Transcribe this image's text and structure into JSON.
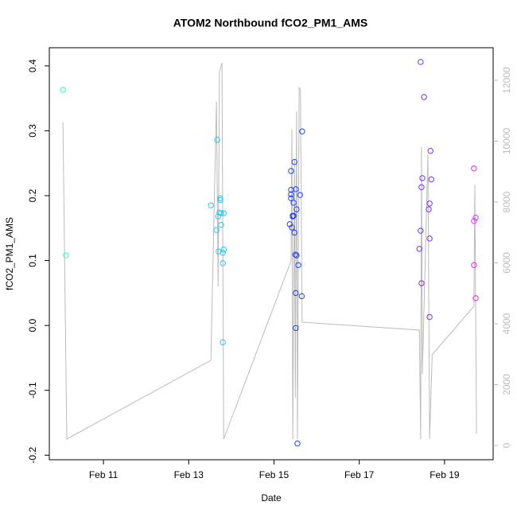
{
  "chart_data": {
    "type": "scatter",
    "title": "ATOM2 Northbound fCO2_PM1_AMS",
    "x_label": "Date",
    "y_label": "fCO2_PM1_AMS",
    "xlim": [
      9.73,
      20.14
    ],
    "xticks": [
      {
        "value": 11,
        "label": "Feb 11"
      },
      {
        "value": 13,
        "label": "Feb 13"
      },
      {
        "value": 15,
        "label": "Feb 15"
      },
      {
        "value": 17,
        "label": "Feb 17"
      },
      {
        "value": 19,
        "label": "Feb 19"
      }
    ],
    "ylim": [
      -0.207,
      0.428
    ],
    "yticks": [
      -0.2,
      -0.1,
      {
        "value": 0,
        "label": "0.0"
      },
      0.1,
      0.2,
      0.3,
      0.4
    ],
    "y2lim": [
      -471,
      13072
    ],
    "y2ticks": [
      0,
      2000,
      4000,
      6000,
      8000,
      10000,
      12000
    ],
    "y2_color": "#bbbbbb",
    "series": [
      {
        "type": "scatter",
        "color": "#33ffaa",
        "x": [
          10.05,
          10.12
        ],
        "values": [
          0.363,
          0.108
        ]
      },
      {
        "type": "scatter",
        "color": "#22ccee",
        "x": [
          13.52,
          13.65,
          13.67,
          13.69,
          13.7,
          13.72,
          13.74,
          13.74,
          13.76,
          13.76,
          13.82,
          13.8,
          13.82,
          13.8,
          13.8
        ],
        "values": [
          0.185,
          0.147,
          0.286,
          0.168,
          0.114,
          0.174,
          0.193,
          0.196,
          0.155,
          0.173,
          0.173,
          0.112,
          0.117,
          0.096,
          -0.026
        ]
      },
      {
        "type": "scatter",
        "color": "#2244ee",
        "x": [
          15.37,
          15.4,
          15.4,
          15.4,
          15.4,
          15.42,
          15.44,
          15.46,
          15.44,
          15.46,
          15.48,
          15.48,
          15.5,
          15.51,
          15.51,
          15.53,
          15.51,
          15.53,
          15.55,
          15.57,
          15.61,
          15.65,
          15.66
        ],
        "values": [
          0.156,
          0.238,
          0.209,
          0.202,
          0.196,
          0.151,
          0.168,
          0.189,
          0.169,
          0.169,
          0.252,
          0.143,
          0.109,
          0.21,
          0.05,
          0.179,
          -0.004,
          0.108,
          -0.182,
          0.093,
          0.201,
          0.045,
          0.299
        ]
      },
      {
        "type": "scatter",
        "color": "#7733ee",
        "x": [
          18.44,
          18.41,
          18.44,
          18.46,
          18.48,
          18.46,
          18.52,
          18.63,
          18.65,
          18.67,
          18.65,
          18.65,
          18.69
        ],
        "values": [
          0.406,
          0.118,
          0.146,
          0.213,
          0.227,
          0.065,
          0.352,
          0.179,
          0.188,
          0.269,
          0.134,
          0.013,
          0.225
        ]
      },
      {
        "type": "scatter",
        "color": "#dd33ee",
        "x": [
          19.69,
          19.69,
          19.73,
          19.69,
          19.73
        ],
        "values": [
          0.242,
          0.161,
          0.166,
          0.093,
          0.042
        ]
      },
      {
        "type": "line",
        "axis": "y2",
        "color": "#bbbbbb",
        "x": [
          10.05,
          10.14,
          13.52,
          13.65,
          13.69,
          13.72,
          13.78,
          13.82,
          15.4,
          15.42,
          15.44,
          15.48,
          15.5,
          15.53,
          15.55,
          15.59,
          15.62,
          15.66,
          18.41,
          18.44,
          18.46,
          18.48,
          18.61,
          18.65,
          18.71,
          19.69,
          19.71,
          19.75
        ],
        "values": [
          10613,
          209,
          2797,
          11293,
          5228,
          12286,
          12573,
          209,
          6065,
          10378,
          209,
          9411,
          1568,
          10979,
          209,
          11763,
          11711,
          4052,
          3790,
          209,
          9803,
          2353,
          9541,
          209,
          2980,
          4575,
          8574,
          392
        ]
      }
    ]
  }
}
